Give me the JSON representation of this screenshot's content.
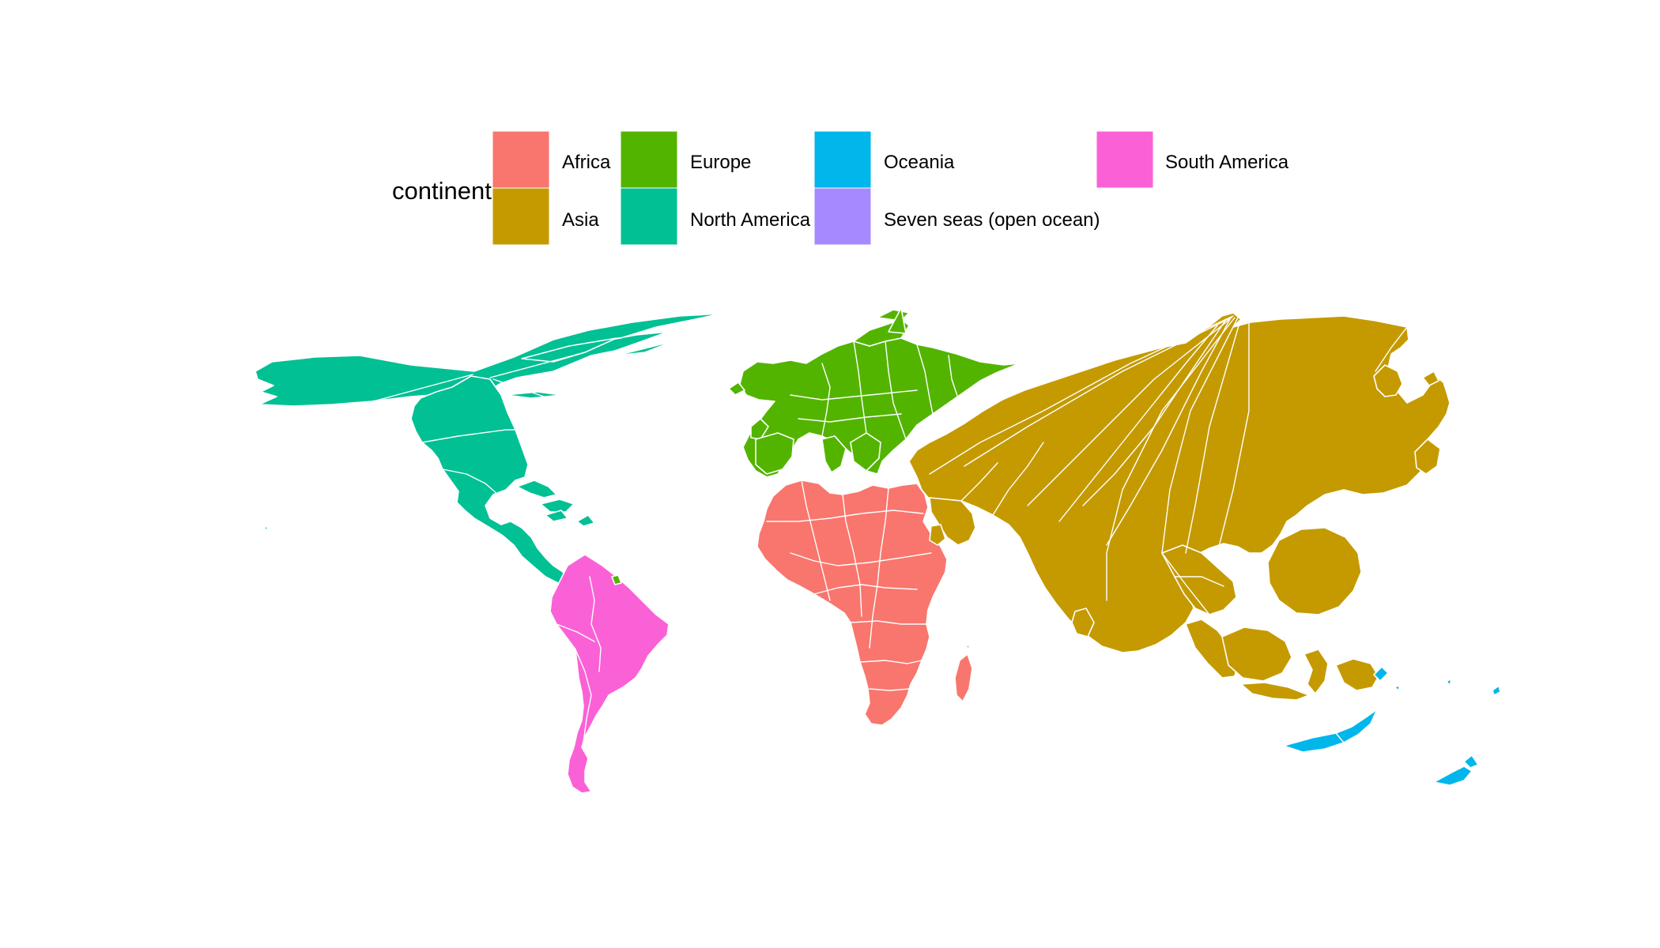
{
  "legend": {
    "title": "continent",
    "items": [
      {
        "key": "africa",
        "label": "Africa",
        "color": "#F8766D"
      },
      {
        "key": "asia",
        "label": "Asia",
        "color": "#C49A00"
      },
      {
        "key": "europe",
        "label": "Europe",
        "color": "#53B400"
      },
      {
        "key": "north_america",
        "label": "North America",
        "color": "#00C094"
      },
      {
        "key": "oceania",
        "label": "Oceania",
        "color": "#00B6EB"
      },
      {
        "key": "seven_seas",
        "label": "Seven seas (open ocean)",
        "color": "#A58AFF"
      },
      {
        "key": "south_america",
        "label": "South America",
        "color": "#FB61D7"
      }
    ]
  }
}
